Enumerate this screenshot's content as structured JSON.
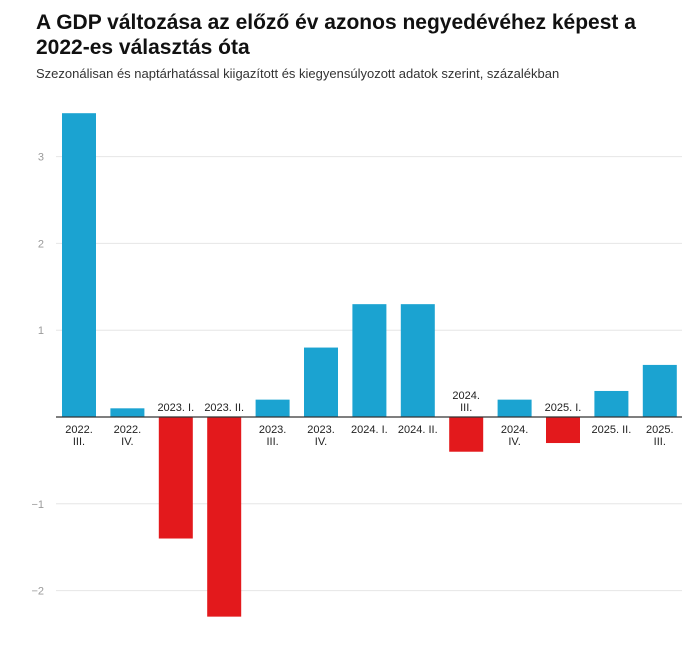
{
  "title": "A GDP változása az előző év azonos negyedévéhez képest a 2022-es választás óta",
  "subtitle": "Szezonálisan és naptárhatással kiigazított és kiegyensúlyozott adatok szerint, százalékban",
  "colors": {
    "positive": "#1ba3d1",
    "negative": "#e3191c",
    "grid": "#e6e6e6",
    "axis": "#333333"
  },
  "chart_data": {
    "type": "bar",
    "title": "A GDP változása az előző év azonos negyedévéhez képest a 2022-es választás óta",
    "subtitle": "Szezonálisan és naptárhatással kiigazított és kiegyensúlyozott adatok szerint, százalékban",
    "categories": [
      [
        "2022.",
        "III."
      ],
      [
        "2022.",
        "IV."
      ],
      [
        "2023. I."
      ],
      [
        "2023. II."
      ],
      [
        "2023.",
        "III."
      ],
      [
        "2023.",
        "IV."
      ],
      [
        "2024. I."
      ],
      [
        "2024. II."
      ],
      [
        "2024.",
        "III."
      ],
      [
        "2024.",
        "IV."
      ],
      [
        "2025. I."
      ],
      [
        "2025. II."
      ],
      [
        "2025.",
        "III."
      ]
    ],
    "values": [
      3.5,
      0.1,
      -1.4,
      -2.3,
      0.2,
      0.8,
      1.3,
      1.3,
      -0.4,
      0.2,
      -0.3,
      0.3,
      0.6
    ],
    "yticks": [
      3,
      2,
      1,
      -1,
      -2
    ],
    "ytick_labels": [
      "3",
      "2",
      "1",
      "−1",
      "−2"
    ],
    "ylim": [
      -2.35,
      3.55
    ],
    "grid": true,
    "legend": "none"
  }
}
